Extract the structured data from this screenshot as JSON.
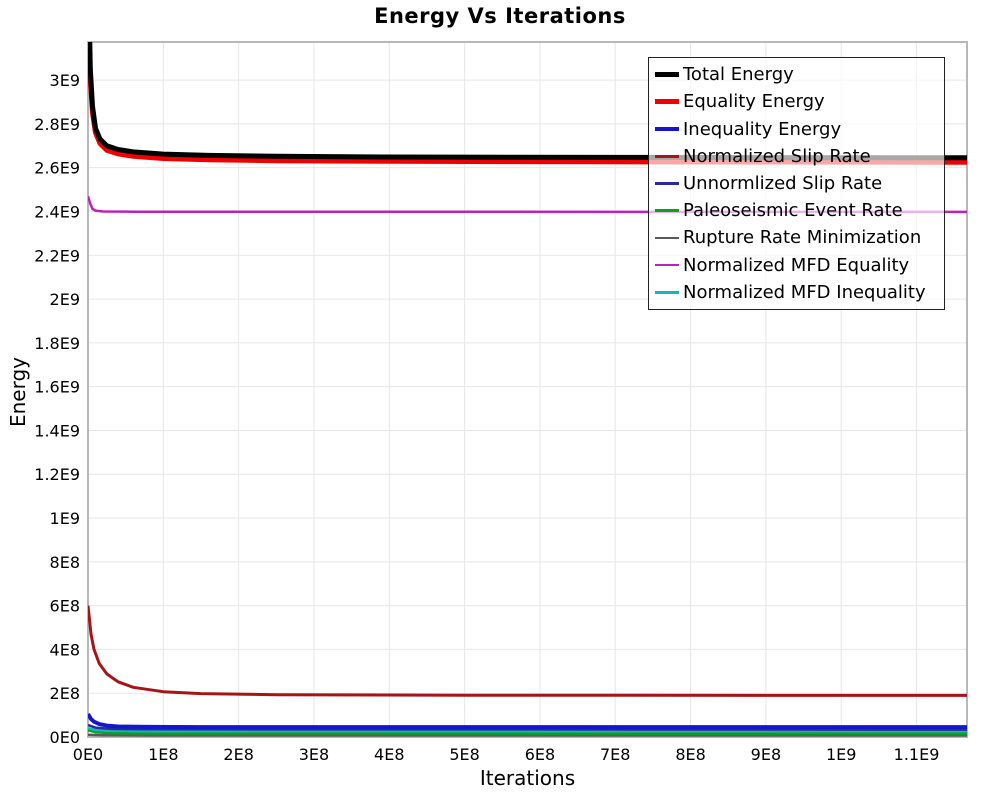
{
  "chart_data": {
    "type": "line",
    "title": "Energy Vs Iterations",
    "xlabel": "Iterations",
    "ylabel": "Energy",
    "xlim": [
      0,
      1167000000.0
    ],
    "ylim": [
      0,
      3174000000.0
    ],
    "grid": true,
    "legend_position": "top-right",
    "frame_color": "#b8b8b8",
    "grid_color": "#e7e7e7",
    "xticks": [
      {
        "v": 0,
        "label": "0E0"
      },
      {
        "v": 100000000.0,
        "label": "1E8"
      },
      {
        "v": 200000000.0,
        "label": "2E8"
      },
      {
        "v": 300000000.0,
        "label": "3E8"
      },
      {
        "v": 400000000.0,
        "label": "4E8"
      },
      {
        "v": 500000000.0,
        "label": "5E8"
      },
      {
        "v": 600000000.0,
        "label": "6E8"
      },
      {
        "v": 700000000.0,
        "label": "7E8"
      },
      {
        "v": 800000000.0,
        "label": "8E8"
      },
      {
        "v": 900000000.0,
        "label": "9E8"
      },
      {
        "v": 1000000000.0,
        "label": "1E9"
      },
      {
        "v": 1100000000.0,
        "label": "1.1E9"
      }
    ],
    "yticks": [
      {
        "v": 0,
        "label": "0E0"
      },
      {
        "v": 200000000.0,
        "label": "2E8"
      },
      {
        "v": 400000000.0,
        "label": "4E8"
      },
      {
        "v": 600000000.0,
        "label": "6E8"
      },
      {
        "v": 800000000.0,
        "label": "8E8"
      },
      {
        "v": 1000000000.0,
        "label": "1E9"
      },
      {
        "v": 1200000000.0,
        "label": "1.2E9"
      },
      {
        "v": 1400000000.0,
        "label": "1.4E9"
      },
      {
        "v": 1600000000.0,
        "label": "1.6E9"
      },
      {
        "v": 1800000000.0,
        "label": "1.8E9"
      },
      {
        "v": 2000000000.0,
        "label": "2E9"
      },
      {
        "v": 2200000000.0,
        "label": "2.2E9"
      },
      {
        "v": 2400000000.0,
        "label": "2.4E9"
      },
      {
        "v": 2600000000.0,
        "label": "2.6E9"
      },
      {
        "v": 2800000000.0,
        "label": "2.8E9"
      },
      {
        "v": 3000000000.0,
        "label": "3E9"
      }
    ],
    "draw_order": [
      6,
      5,
      8,
      4,
      2,
      3,
      7,
      1,
      0
    ],
    "series": [
      {
        "name": "Total Energy",
        "color": "#000000",
        "width": 5,
        "points": [
          [
            0,
            3600000000.0
          ],
          [
            3000000.0,
            3050000000.0
          ],
          [
            6000000.0,
            2880000000.0
          ],
          [
            10000000.0,
            2780000000.0
          ],
          [
            16000000.0,
            2730000000.0
          ],
          [
            25000000.0,
            2700000000.0
          ],
          [
            40000000.0,
            2683000000.0
          ],
          [
            60000000.0,
            2672000000.0
          ],
          [
            100000000.0,
            2662000000.0
          ],
          [
            160000000.0,
            2656000000.0
          ],
          [
            250000000.0,
            2652000000.0
          ],
          [
            400000000.0,
            2649000000.0
          ],
          [
            700000000.0,
            2647000000.0
          ],
          [
            1167000000.0,
            2645000000.0
          ]
        ]
      },
      {
        "name": "Equality Energy",
        "color": "#ee0000",
        "width": 5,
        "points": [
          [
            0,
            3550000000.0
          ],
          [
            3000000.0,
            3000000000.0
          ],
          [
            6000000.0,
            2850000000.0
          ],
          [
            10000000.0,
            2760000000.0
          ],
          [
            16000000.0,
            2710000000.0
          ],
          [
            25000000.0,
            2680000000.0
          ],
          [
            40000000.0,
            2663000000.0
          ],
          [
            60000000.0,
            2652000000.0
          ],
          [
            100000000.0,
            2642000000.0
          ],
          [
            160000000.0,
            2636000000.0
          ],
          [
            250000000.0,
            2632000000.0
          ],
          [
            400000000.0,
            2629000000.0
          ],
          [
            700000000.0,
            2627000000.0
          ],
          [
            1167000000.0,
            2625000000.0
          ]
        ]
      },
      {
        "name": "Inequality Energy",
        "color": "#1515cc",
        "width": 4,
        "points": [
          [
            0,
            105000000.0
          ],
          [
            4000000.0,
            82000000.0
          ],
          [
            8000000.0,
            70000000.0
          ],
          [
            15000000.0,
            59000000.0
          ],
          [
            25000000.0,
            52000000.0
          ],
          [
            40000000.0,
            48000000.0
          ],
          [
            80000000.0,
            46000000.0
          ],
          [
            150000000.0,
            45000000.0
          ],
          [
            1167000000.0,
            45000000.0
          ]
        ]
      },
      {
        "name": "Normalized Slip Rate",
        "color": "#a51515",
        "width": 3,
        "points": [
          [
            0,
            600000000.0
          ],
          [
            4000000.0,
            470000000.0
          ],
          [
            8000000.0,
            400000000.0
          ],
          [
            15000000.0,
            335000000.0
          ],
          [
            25000000.0,
            288000000.0
          ],
          [
            40000000.0,
            252000000.0
          ],
          [
            60000000.0,
            227000000.0
          ],
          [
            100000000.0,
            207000000.0
          ],
          [
            150000000.0,
            198000000.0
          ],
          [
            250000000.0,
            193000000.0
          ],
          [
            500000000.0,
            191000000.0
          ],
          [
            1167000000.0,
            190000000.0
          ]
        ]
      },
      {
        "name": "Unnormlized Slip Rate",
        "color": "#2a2a9e",
        "width": 2.5,
        "points": [
          [
            0,
            55000000.0
          ],
          [
            10000000.0,
            43000000.0
          ],
          [
            30000000.0,
            37000000.0
          ],
          [
            80000000.0,
            35000000.0
          ],
          [
            1167000000.0,
            34000000.0
          ]
        ]
      },
      {
        "name": "Paleoseismic Event Rate",
        "color": "#00a61b",
        "width": 2.5,
        "points": [
          [
            0,
            30000000.0
          ],
          [
            10000000.0,
            22000000.0
          ],
          [
            30000000.0,
            18000000.0
          ],
          [
            80000000.0,
            16500000.0
          ],
          [
            1167000000.0,
            16000000.0
          ]
        ]
      },
      {
        "name": "Rupture Rate Minimization",
        "color": "#5a5a5a",
        "width": 2.5,
        "points": [
          [
            0,
            10000000.0
          ],
          [
            20000000.0,
            8000000.0
          ],
          [
            80000000.0,
            7000000.0
          ],
          [
            1167000000.0,
            7000000.0
          ]
        ]
      },
      {
        "name": "Normalized MFD Equality",
        "color": "#bb22bb",
        "width": 2.5,
        "points": [
          [
            0,
            2470000000.0
          ],
          [
            3000000.0,
            2435000000.0
          ],
          [
            6000000.0,
            2412000000.0
          ],
          [
            10000000.0,
            2404000000.0
          ],
          [
            20000000.0,
            2400000000.0
          ],
          [
            60000000.0,
            2399000000.0
          ],
          [
            1167000000.0,
            2398000000.0
          ]
        ]
      },
      {
        "name": "Normalized MFD Inequality",
        "color": "#17b5b5",
        "width": 2.5,
        "points": [
          [
            0,
            40000000.0
          ],
          [
            10000000.0,
            32000000.0
          ],
          [
            30000000.0,
            28000000.0
          ],
          [
            80000000.0,
            26500000.0
          ],
          [
            1167000000.0,
            26000000.0
          ]
        ]
      }
    ]
  }
}
